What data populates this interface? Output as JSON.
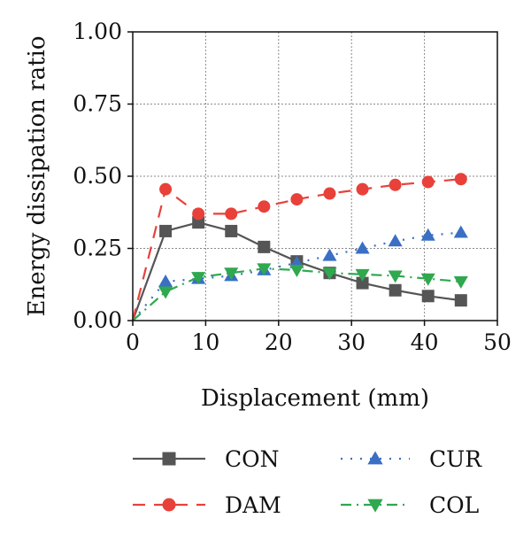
{
  "chart_data": {
    "type": "line",
    "xlabel": "Displacement (mm)",
    "ylabel": "Energy dissipation ratio",
    "xlim": [
      0,
      50
    ],
    "ylim": [
      0,
      1.0
    ],
    "xticks": [
      "0",
      "10",
      "20",
      "30",
      "40",
      "50"
    ],
    "yticks": [
      "0.00",
      "0.25",
      "0.50",
      "0.75",
      "1.00"
    ],
    "grid": true,
    "legend_position": "bottom",
    "series": [
      {
        "name": "CON",
        "color": "#555555",
        "marker": "square",
        "line": "solid",
        "x": [
          0,
          4.5,
          9,
          13.5,
          18,
          22.5,
          27,
          31.5,
          36,
          40.5,
          45
        ],
        "y": [
          0.0,
          0.31,
          0.34,
          0.31,
          0.255,
          0.205,
          0.165,
          0.13,
          0.105,
          0.085,
          0.07
        ]
      },
      {
        "name": "CUR",
        "color": "#3a6fc4",
        "marker": "triangle-up",
        "line": "dotted",
        "x": [
          0,
          4.5,
          9,
          13.5,
          18,
          22.5,
          27,
          31.5,
          36,
          40.5,
          45
        ],
        "y": [
          0.0,
          0.135,
          0.145,
          0.155,
          0.175,
          0.2,
          0.225,
          0.25,
          0.275,
          0.295,
          0.305
        ]
      },
      {
        "name": "DAM",
        "color": "#e8413a",
        "marker": "circle",
        "line": "dashed",
        "x": [
          0,
          4.5,
          9,
          13.5,
          18,
          22.5,
          27,
          31.5,
          36,
          40.5,
          45
        ],
        "y": [
          0.0,
          0.455,
          0.37,
          0.37,
          0.395,
          0.42,
          0.44,
          0.455,
          0.47,
          0.48,
          0.49
        ]
      },
      {
        "name": "COL",
        "color": "#2fa84f",
        "marker": "triangle-down",
        "line": "dash-dot",
        "x": [
          0,
          4.5,
          9,
          13.5,
          18,
          22.5,
          27,
          31.5,
          36,
          40.5,
          45
        ],
        "y": [
          0.0,
          0.1,
          0.15,
          0.165,
          0.18,
          0.175,
          0.165,
          0.16,
          0.155,
          0.145,
          0.135
        ]
      }
    ]
  }
}
